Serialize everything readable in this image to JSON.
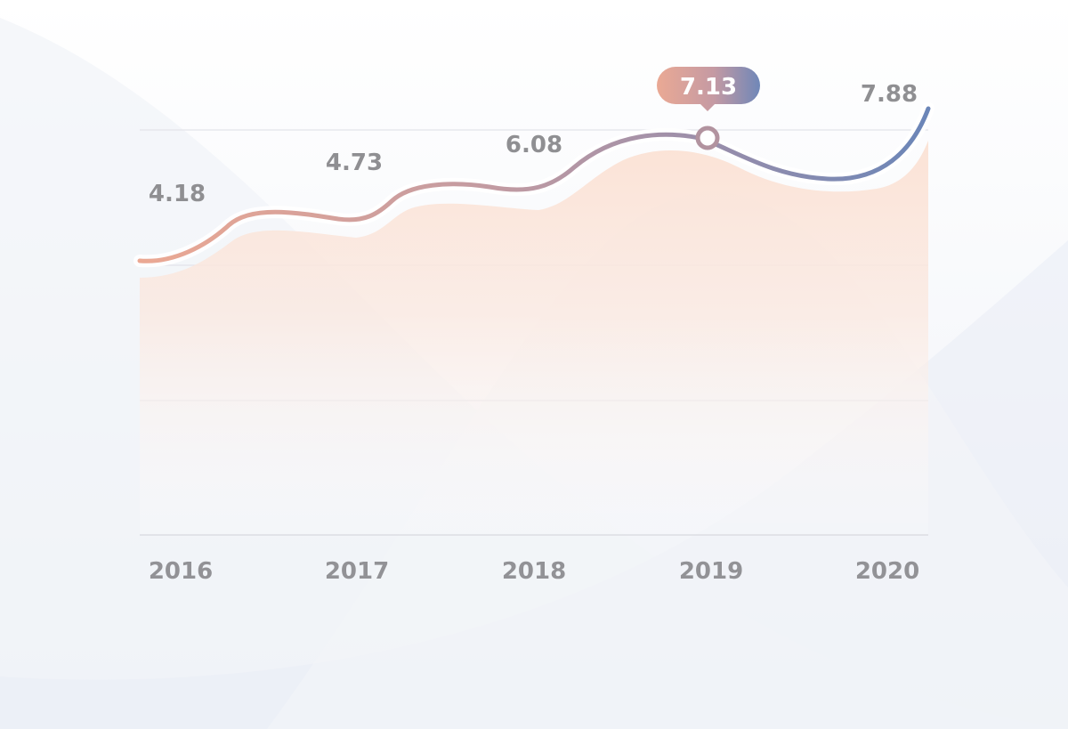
{
  "chart_data": {
    "type": "area",
    "categories": [
      "2016",
      "2017",
      "2018",
      "2019",
      "2020"
    ],
    "values": [
      4.18,
      4.73,
      6.08,
      7.13,
      7.88
    ],
    "highlight": {
      "category": "2019",
      "label": "7.13"
    },
    "title": "",
    "xlabel": "",
    "ylabel": "",
    "grid": true,
    "gradient_colors": [
      "#eba591",
      "#6b86b8"
    ],
    "area_color": "#fbe4d8"
  }
}
